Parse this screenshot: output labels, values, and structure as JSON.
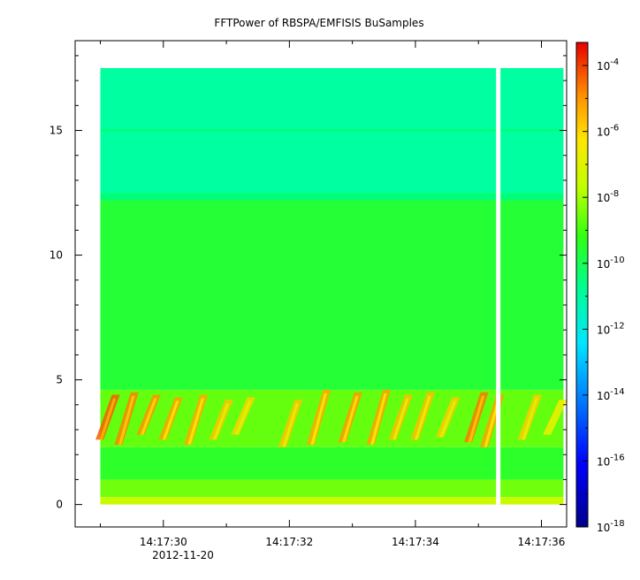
{
  "chart_data": {
    "type": "heatmap",
    "title": "FFTPower of RBSPA/EMFISIS  BuSamples",
    "xlabel": "",
    "ylabel": "",
    "x_tick_labels": [
      "14:17:30",
      "14:17:32",
      "14:17:34",
      "14:17:36"
    ],
    "x_date_label": "2012-11-20",
    "x_range_seconds": [
      28.6,
      36.4
    ],
    "data_x_range_seconds": [
      29.0,
      36.35
    ],
    "gap_seconds": [
      35.28,
      35.35
    ],
    "y_ticks": [
      0,
      5,
      10,
      15
    ],
    "ylim": [
      -0.9,
      18.6
    ],
    "data_y_range": [
      0,
      17.5
    ],
    "colorbar": {
      "scale": "log",
      "range": [
        -18,
        -3.3
      ],
      "tick_exponents": [
        -18,
        -16,
        -14,
        -12,
        -10,
        -8,
        -6,
        -4
      ],
      "tick_base": "10"
    },
    "bands": [
      {
        "y_from": 0.0,
        "y_to": 0.3,
        "log_power": -8.8
      },
      {
        "y_from": 0.3,
        "y_to": 1.0,
        "log_power": -9.6
      },
      {
        "y_from": 1.0,
        "y_to": 2.3,
        "log_power": -10.2
      },
      {
        "y_from": 2.3,
        "y_to": 4.6,
        "log_power": -9.7
      },
      {
        "y_from": 4.6,
        "y_to": 12.2,
        "log_power": -10.3
      },
      {
        "y_from": 12.2,
        "y_to": 12.5,
        "log_power": -11.0
      },
      {
        "y_from": 12.5,
        "y_to": 17.5,
        "log_power": -11.8
      }
    ],
    "line_15": {
      "y": 15.0,
      "log_power": -10.8
    },
    "bursts": [
      {
        "t": 29.05,
        "y0": 2.6,
        "y1": 4.4,
        "log_power": -6.0
      },
      {
        "t": 29.35,
        "y0": 2.4,
        "y1": 4.5,
        "log_power": -6.4
      },
      {
        "t": 29.7,
        "y0": 2.8,
        "y1": 4.4,
        "log_power": -6.6
      },
      {
        "t": 30.05,
        "y0": 2.6,
        "y1": 4.3,
        "log_power": -6.8
      },
      {
        "t": 30.45,
        "y0": 2.4,
        "y1": 4.4,
        "log_power": -6.9
      },
      {
        "t": 30.85,
        "y0": 2.6,
        "y1": 4.2,
        "log_power": -7.3
      },
      {
        "t": 31.2,
        "y0": 2.8,
        "y1": 4.3,
        "log_power": -7.5
      },
      {
        "t": 31.95,
        "y0": 2.3,
        "y1": 4.2,
        "log_power": -7.3
      },
      {
        "t": 32.4,
        "y0": 2.4,
        "y1": 4.6,
        "log_power": -6.9
      },
      {
        "t": 32.9,
        "y0": 2.5,
        "y1": 4.5,
        "log_power": -6.7
      },
      {
        "t": 33.35,
        "y0": 2.4,
        "y1": 4.6,
        "log_power": -6.8
      },
      {
        "t": 33.7,
        "y0": 2.6,
        "y1": 4.4,
        "log_power": -7.2
      },
      {
        "t": 34.05,
        "y0": 2.6,
        "y1": 4.5,
        "log_power": -7.2
      },
      {
        "t": 34.45,
        "y0": 2.7,
        "y1": 4.3,
        "log_power": -7.4
      },
      {
        "t": 34.9,
        "y0": 2.5,
        "y1": 4.5,
        "log_power": -6.3
      },
      {
        "t": 35.15,
        "y0": 2.3,
        "y1": 4.4,
        "log_power": -6.8
      },
      {
        "t": 35.75,
        "y0": 2.6,
        "y1": 4.4,
        "log_power": -7.4
      },
      {
        "t": 36.15,
        "y0": 2.8,
        "y1": 4.2,
        "log_power": -7.8
      }
    ]
  }
}
